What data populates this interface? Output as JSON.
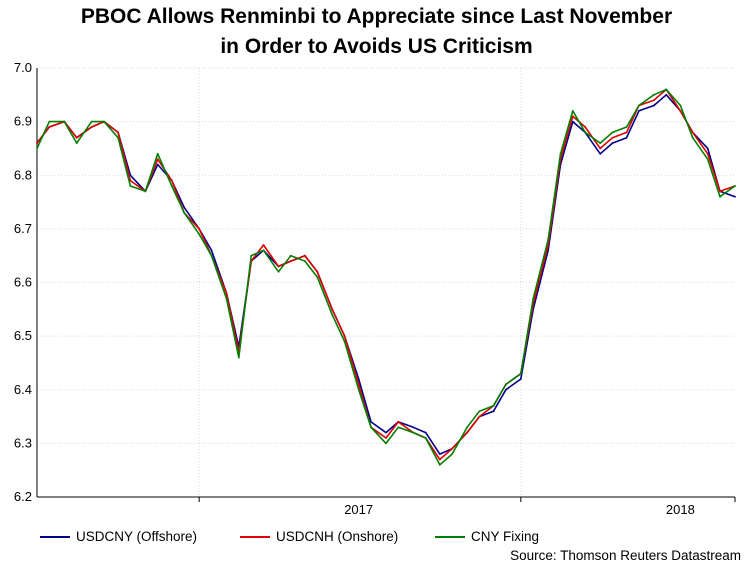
{
  "chart_data": {
    "type": "line",
    "title_line1": "PBOC Allows Renminbi to Appreciate since Last November",
    "title_line2": "in Order to Avoids US Criticism",
    "source": "Source: Thomson Reuters Datastream",
    "ylim": [
      6.2,
      7.0
    ],
    "yticks": [
      "7.0",
      "6.9",
      "6.8",
      "6.7",
      "6.6",
      "6.5",
      "6.4",
      "6.3",
      "6.2"
    ],
    "x_start": "2016-07-01",
    "x_end": "2018-09-01",
    "year_separators": [
      "2017-01-01",
      "2018-01-01"
    ],
    "year_labels": [
      {
        "label": "2017",
        "date": "2017-07-01"
      },
      {
        "label": "2018",
        "date": "2018-07-01"
      }
    ],
    "grid": true,
    "legend_position": "bottom",
    "dates": [
      "2016-07-01",
      "2016-07-15",
      "2016-08-01",
      "2016-08-15",
      "2016-09-01",
      "2016-09-15",
      "2016-10-01",
      "2016-10-15",
      "2016-11-01",
      "2016-11-15",
      "2016-12-01",
      "2016-12-15",
      "2017-01-01",
      "2017-01-15",
      "2017-02-01",
      "2017-02-15",
      "2017-03-01",
      "2017-03-15",
      "2017-04-01",
      "2017-04-15",
      "2017-05-01",
      "2017-05-15",
      "2017-06-01",
      "2017-06-15",
      "2017-07-01",
      "2017-07-15",
      "2017-08-01",
      "2017-08-15",
      "2017-09-01",
      "2017-09-15",
      "2017-10-01",
      "2017-10-15",
      "2017-11-01",
      "2017-11-15",
      "2017-12-01",
      "2017-12-15",
      "2018-01-01",
      "2018-01-15",
      "2018-02-01",
      "2018-02-15",
      "2018-03-01",
      "2018-03-15",
      "2018-04-01",
      "2018-04-15",
      "2018-05-01",
      "2018-05-15",
      "2018-06-01",
      "2018-06-15",
      "2018-07-01",
      "2018-07-15",
      "2018-08-01",
      "2018-08-15",
      "2018-09-01"
    ],
    "series": [
      {
        "name": "USDCNY (Offshore)",
        "color": "#00008b",
        "values": [
          6.86,
          6.89,
          6.9,
          6.87,
          6.89,
          6.9,
          6.88,
          6.8,
          6.77,
          6.82,
          6.79,
          6.74,
          6.7,
          6.66,
          6.58,
          6.48,
          6.64,
          6.66,
          6.63,
          6.64,
          6.65,
          6.62,
          6.55,
          6.5,
          6.42,
          6.34,
          6.32,
          6.34,
          6.33,
          6.32,
          6.28,
          6.29,
          6.32,
          6.35,
          6.36,
          6.4,
          6.42,
          6.55,
          6.66,
          6.82,
          6.9,
          6.88,
          6.84,
          6.86,
          6.87,
          6.92,
          6.93,
          6.95,
          6.92,
          6.88,
          6.85,
          6.77,
          6.76
        ]
      },
      {
        "name": "USDCNH (Onshore)",
        "color": "#e00000",
        "values": [
          6.86,
          6.89,
          6.9,
          6.87,
          6.89,
          6.9,
          6.88,
          6.79,
          6.77,
          6.83,
          6.79,
          6.73,
          6.7,
          6.65,
          6.58,
          6.47,
          6.64,
          6.67,
          6.63,
          6.64,
          6.65,
          6.62,
          6.55,
          6.5,
          6.41,
          6.33,
          6.31,
          6.34,
          6.32,
          6.31,
          6.27,
          6.29,
          6.32,
          6.35,
          6.37,
          6.41,
          6.43,
          6.56,
          6.67,
          6.83,
          6.91,
          6.89,
          6.85,
          6.87,
          6.88,
          6.93,
          6.94,
          6.96,
          6.92,
          6.88,
          6.84,
          6.77,
          6.78
        ]
      },
      {
        "name": "CNY Fixing",
        "color": "#008000",
        "values": [
          6.85,
          6.9,
          6.9,
          6.86,
          6.9,
          6.9,
          6.87,
          6.78,
          6.77,
          6.84,
          6.78,
          6.73,
          6.69,
          6.65,
          6.57,
          6.46,
          6.65,
          6.66,
          6.62,
          6.65,
          6.64,
          6.61,
          6.54,
          6.49,
          6.4,
          6.33,
          6.3,
          6.33,
          6.32,
          6.31,
          6.26,
          6.28,
          6.33,
          6.36,
          6.37,
          6.41,
          6.43,
          6.57,
          6.68,
          6.84,
          6.92,
          6.88,
          6.86,
          6.88,
          6.89,
          6.93,
          6.95,
          6.96,
          6.93,
          6.87,
          6.83,
          6.76,
          6.78
        ]
      }
    ]
  }
}
